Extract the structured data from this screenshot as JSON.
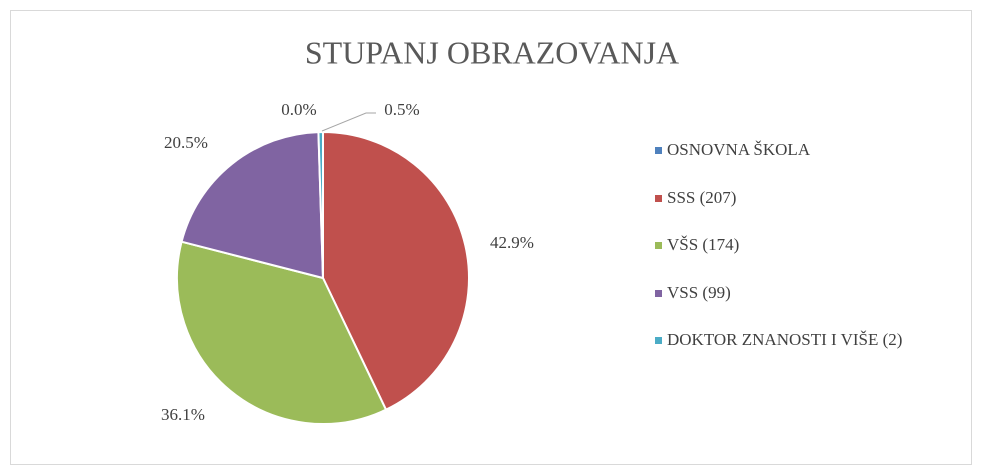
{
  "chart_data": {
    "type": "pie",
    "title": "STUPANJ OBRAZOVANJA",
    "categories": [
      "OSNOVNA ŠKOLA",
      "SSS (207)",
      "VŠS (174)",
      "VSS (99)",
      "DOKTOR ZNANOSTI I VIŠE (2)"
    ],
    "values": [
      0,
      42.9,
      36.1,
      20.5,
      0.5
    ],
    "value_labels": [
      "0.0%",
      "42.9%",
      "36.1%",
      "20.5%",
      "0.5%"
    ],
    "colors": [
      "#4f81bd",
      "#c0504d",
      "#9bbb59",
      "#8064a2",
      "#4bacc6"
    ],
    "legend": "right"
  }
}
